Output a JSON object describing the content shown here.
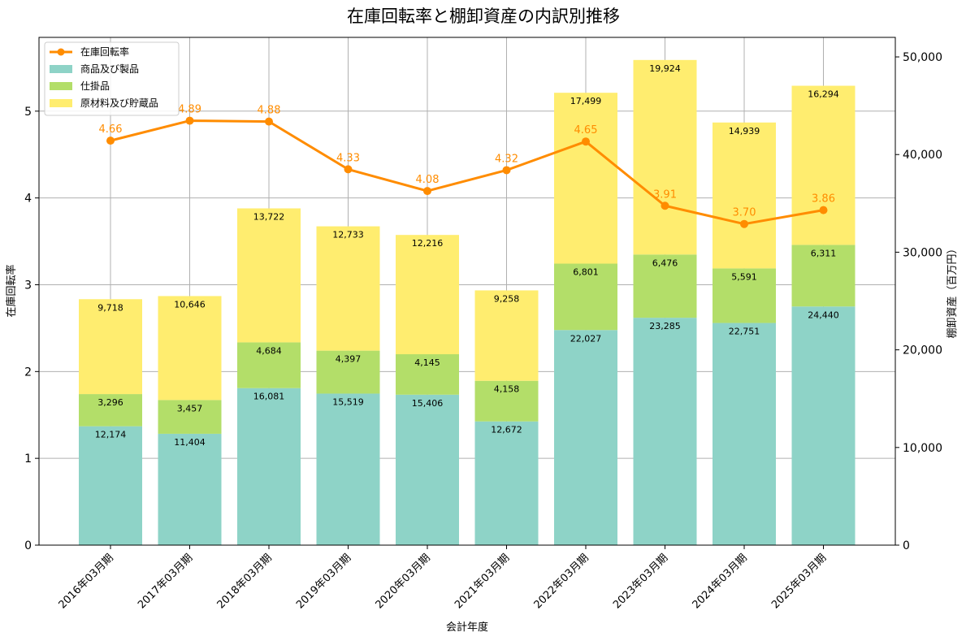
{
  "chart_data": {
    "type": "bar",
    "title": "在庫回転率と棚卸資産の内訳別推移",
    "xlabel": "会計年度",
    "ylabel_left": "在庫回転率",
    "ylabel_right": "棚卸資産（百万円）",
    "categories": [
      "2016年03月期",
      "2017年03月期",
      "2018年03月期",
      "2019年03月期",
      "2020年03月期",
      "2021年03月期",
      "2022年03月期",
      "2023年03月期",
      "2024年03月期",
      "2025年03月期"
    ],
    "series": [
      {
        "name": "商品及び製品",
        "type": "bar",
        "axis": "right",
        "color": "#8ed3c7",
        "values": [
          12174,
          11404,
          16081,
          15519,
          15406,
          12672,
          22027,
          23285,
          22751,
          24440
        ],
        "labels": [
          "12,174",
          "11,404",
          "16,081",
          "15,519",
          "15,406",
          "12,672",
          "22,027",
          "23,285",
          "22,751",
          "24,440"
        ]
      },
      {
        "name": "仕掛品",
        "type": "bar",
        "axis": "right",
        "color": "#b3de69",
        "values": [
          3296,
          3457,
          4684,
          4397,
          4145,
          4158,
          6801,
          6476,
          5591,
          6311
        ],
        "labels": [
          "3,296",
          "3,457",
          "4,684",
          "4,397",
          "4,145",
          "4,158",
          "6,801",
          "6,476",
          "5,591",
          "6,311"
        ]
      },
      {
        "name": "原材料及び貯蔵品",
        "type": "bar",
        "axis": "right",
        "color": "#ffed6f",
        "values": [
          9718,
          10646,
          13722,
          12733,
          12216,
          9258,
          17499,
          19924,
          14939,
          16294
        ],
        "labels": [
          "9,718",
          "10,646",
          "13,722",
          "12,733",
          "12,216",
          "9,258",
          "17,499",
          "19,924",
          "14,939",
          "16,294"
        ]
      },
      {
        "name": "在庫回転率",
        "type": "line",
        "axis": "left",
        "color": "#ff8c00",
        "values": [
          4.66,
          4.89,
          4.88,
          4.33,
          4.08,
          4.32,
          4.65,
          3.91,
          3.7,
          3.86
        ],
        "labels": [
          "4.66",
          "4.89",
          "4.88",
          "4.33",
          "4.08",
          "4.32",
          "4.65",
          "3.91",
          "3.70",
          "3.86"
        ]
      }
    ],
    "ylim_left": [
      0,
      5.85
    ],
    "ylim_right": [
      0,
      52000
    ],
    "yticks_left": [
      "0",
      "1",
      "2",
      "3",
      "4",
      "5"
    ],
    "yticks_right": [
      "0",
      "10,000",
      "20,000",
      "30,000",
      "40,000",
      "50,000"
    ],
    "grid": true,
    "legend": "top-left"
  }
}
